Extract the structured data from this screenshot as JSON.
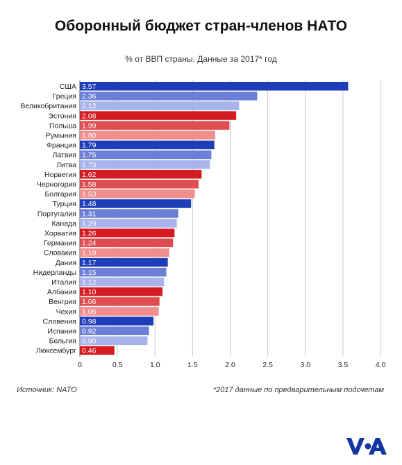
{
  "header": {
    "title": "Оборонный бюджет стран-членов НАТО",
    "subtitle": "% от ВВП страны. Данные за 2017* год"
  },
  "footer": {
    "source": "Источник: NATO",
    "note": "*2017 данные по предварительным подсчетам"
  },
  "logo": {
    "icon": "voa-logo-icon",
    "color": "#1336a3"
  },
  "colors": {
    "blue": [
      "#1e3db8",
      "#6c7fd6",
      "#a7b3ea"
    ],
    "red": [
      "#d41b22",
      "#e04d51",
      "#f08e8e"
    ]
  },
  "chart_data": {
    "type": "bar",
    "orientation": "horizontal",
    "title": "Оборонный бюджет стран-членов НАТО",
    "subtitle": "% от ВВП страны. Данные за 2017* год",
    "categories": [
      "США",
      "Греция",
      "Великобритания",
      "Эстония",
      "Польша",
      "Румыния",
      "Франция",
      "Латвия",
      "Литва",
      "Норвегия",
      "Черногория",
      "Болгария",
      "Турция",
      "Португалия",
      "Канада",
      "Хорватия",
      "Германия",
      "Словакия",
      "Дания",
      "Нидерланды",
      "Италия",
      "Албания",
      "Венгрия",
      "Чехия",
      "Словения",
      "Испания",
      "Бельгия",
      "Люксембург"
    ],
    "values": [
      3.57,
      2.36,
      2.12,
      2.08,
      1.99,
      1.8,
      1.79,
      1.75,
      1.73,
      1.62,
      1.58,
      1.53,
      1.48,
      1.31,
      1.29,
      1.26,
      1.24,
      1.19,
      1.17,
      1.15,
      1.12,
      1.1,
      1.06,
      1.05,
      0.98,
      0.92,
      0.9,
      0.46
    ],
    "value_labels": [
      "3.57",
      "2.36",
      "2.12",
      "2.08",
      "1.99",
      "1.80",
      "1.79",
      "1.75",
      "1.73",
      "1.62",
      "1.58",
      "1.53",
      "1.48",
      "1.31",
      "1.29",
      "1.26",
      "1.24",
      "1.19",
      "1.17",
      "1.15",
      "1.12",
      "1.10",
      "1.06",
      "1.05",
      "0.98",
      "0.92",
      "0.90",
      "0.46"
    ],
    "bar_colors": [
      "#1e3db8",
      "#6c7fd6",
      "#a7b3ea",
      "#d41b22",
      "#e04d51",
      "#f08e8e",
      "#1e3db8",
      "#6c7fd6",
      "#a7b3ea",
      "#d41b22",
      "#e04d51",
      "#f08e8e",
      "#1e3db8",
      "#6c7fd6",
      "#a7b3ea",
      "#d41b22",
      "#e04d51",
      "#f08e8e",
      "#1e3db8",
      "#6c7fd6",
      "#a7b3ea",
      "#d41b22",
      "#e04d51",
      "#f08e8e",
      "#1e3db8",
      "#6c7fd6",
      "#a7b3ea",
      "#d41b22"
    ],
    "xlim": [
      0,
      4.0
    ],
    "xticks": [
      0,
      0.5,
      1.0,
      1.5,
      2.0,
      2.5,
      3.0,
      3.5,
      4.0
    ],
    "xtick_labels": [
      "0",
      "0.5",
      "1.0",
      "1.5",
      "2.0",
      "2.5",
      "3.0",
      "3.5",
      "4.0"
    ],
    "grid": "vertical lines",
    "legend": "none"
  }
}
